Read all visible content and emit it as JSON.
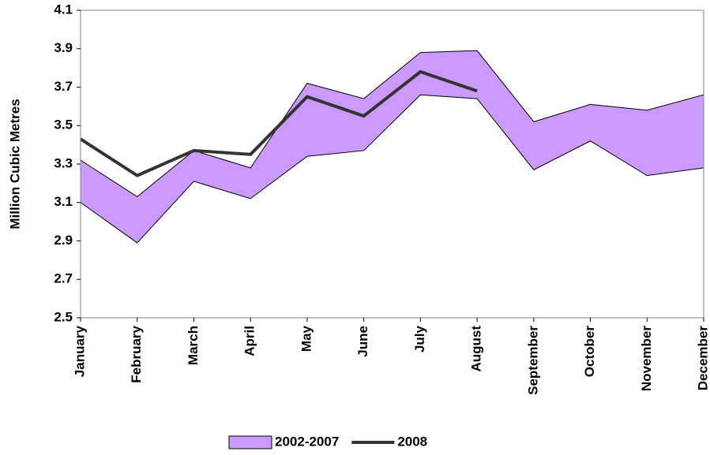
{
  "chart_data": {
    "type": "band-line",
    "y_label": "Million Cubic Metres",
    "categories": [
      "January",
      "February",
      "March",
      "April",
      "May",
      "June",
      "July",
      "August",
      "September",
      "October",
      "November",
      "December"
    ],
    "series": [
      {
        "name": "2002-2007",
        "color": "#cc99ff",
        "upper": [
          3.32,
          3.13,
          3.37,
          3.28,
          3.72,
          3.64,
          3.88,
          3.89,
          3.52,
          3.61,
          3.58,
          3.66
        ],
        "lower": [
          3.1,
          2.89,
          3.21,
          3.12,
          3.34,
          3.37,
          3.66,
          3.64,
          3.27,
          3.42,
          3.24,
          3.28
        ]
      },
      {
        "name": "2008",
        "color": "#333333",
        "values": [
          3.43,
          3.24,
          3.37,
          3.35,
          3.65,
          3.55,
          3.78,
          3.68,
          null,
          null,
          null,
          null
        ]
      }
    ],
    "ylim": [
      2.5,
      4.1
    ],
    "yticks": [
      2.5,
      2.7,
      2.9,
      3.1,
      3.3,
      3.5,
      3.7,
      3.9,
      4.1
    ],
    "grid": false
  }
}
